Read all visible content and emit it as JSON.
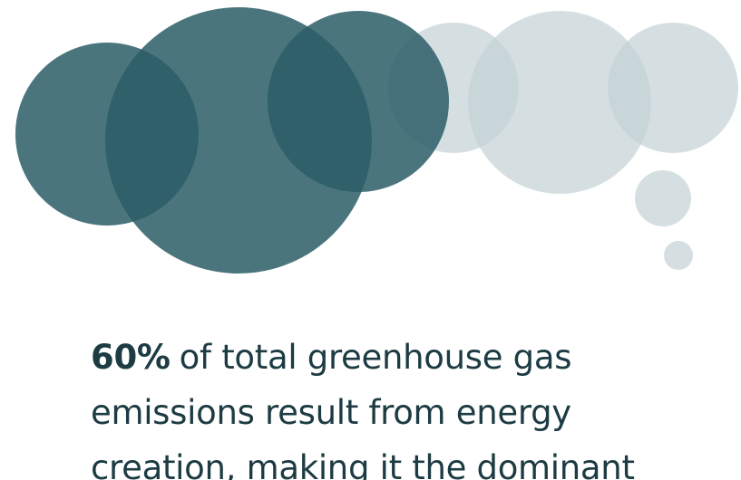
{
  "statement": {
    "highlight": "60%",
    "lines": [
      "of total greenhouse gas",
      "emissions result from energy",
      "creation, making it the dominant"
    ]
  }
}
